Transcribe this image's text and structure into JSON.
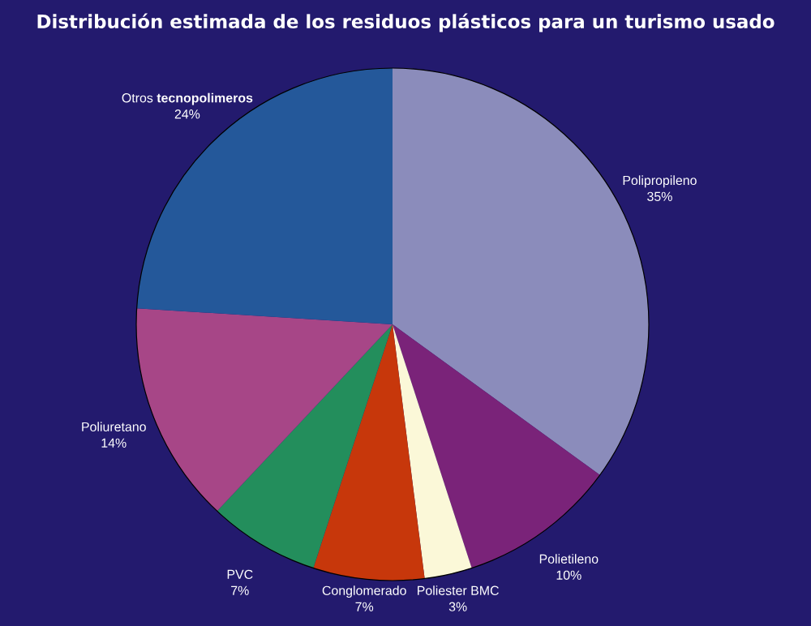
{
  "chart_data": {
    "type": "pie",
    "title": "Distribución estimada de los residuos plásticos para un turismo usado",
    "categories": [
      "Polipropileno",
      "Polietileno",
      "Poliester BMC",
      "Conglomerado",
      "PVC",
      "Poliuretano",
      "Otros **tecnopolimeros**"
    ],
    "values": [
      35,
      10,
      3,
      7,
      7,
      14,
      24
    ],
    "colors": [
      "#8b8cbb",
      "#7a2379",
      "#fbf8d8",
      "#c7370b",
      "#238e5c",
      "#a74687",
      "#24589a"
    ],
    "value_labels": [
      "35%",
      "10%",
      "3%",
      "7%",
      "7%",
      "14%",
      "24%"
    ]
  }
}
